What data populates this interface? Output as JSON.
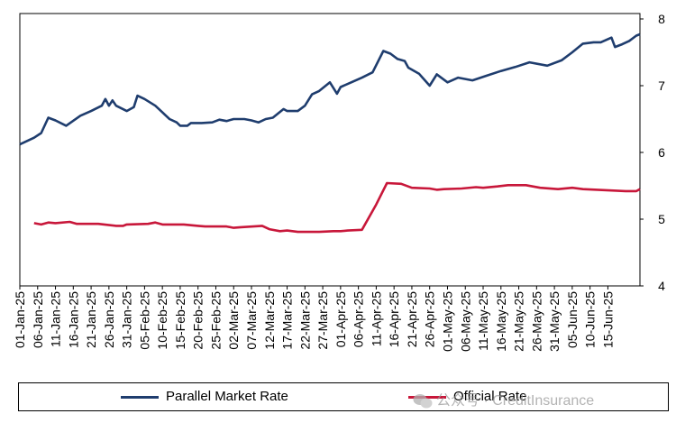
{
  "chart_data": {
    "type": "line",
    "ylim": [
      4,
      8
    ],
    "y_ticks": [
      "4",
      "5",
      "6",
      "7",
      "8"
    ],
    "x_tick_labels": [
      "01-Jan-25",
      "06-Jan-25",
      "11-Jan-25",
      "16-Jan-25",
      "21-Jan-25",
      "26-Jan-25",
      "31-Jan-25",
      "05-Feb-25",
      "10-Feb-25",
      "15-Feb-25",
      "20-Feb-25",
      "25-Feb-25",
      "02-Mar-25",
      "07-Mar-25",
      "12-Mar-25",
      "17-Mar-25",
      "22-Mar-25",
      "27-Mar-25",
      "01-Apr-25",
      "06-Apr-25",
      "11-Apr-25",
      "16-Apr-25",
      "21-Apr-25",
      "26-Apr-25",
      "01-May-25",
      "06-May-25",
      "11-May-25",
      "16-May-25",
      "21-May-25",
      "26-May-25",
      "31-May-25",
      "05-Jun-25",
      "10-Jun-25",
      "15-Jun-25"
    ],
    "x_range_days": [
      0,
      174
    ],
    "grid": false,
    "legend_position": "bottom",
    "series": [
      {
        "name": "Parallel  Market Rate",
        "color": "#1f3d6e",
        "points": [
          [
            0,
            6.12
          ],
          [
            4,
            6.22
          ],
          [
            6,
            6.29
          ],
          [
            8,
            6.52
          ],
          [
            10,
            6.48
          ],
          [
            13,
            6.4
          ],
          [
            17,
            6.55
          ],
          [
            20,
            6.62
          ],
          [
            23,
            6.7
          ],
          [
            24,
            6.8
          ],
          [
            25,
            6.7
          ],
          [
            26,
            6.78
          ],
          [
            27,
            6.7
          ],
          [
            30,
            6.62
          ],
          [
            32,
            6.68
          ],
          [
            33,
            6.85
          ],
          [
            35,
            6.8
          ],
          [
            38,
            6.7
          ],
          [
            40,
            6.6
          ],
          [
            42,
            6.5
          ],
          [
            44,
            6.45
          ],
          [
            45,
            6.4
          ],
          [
            47,
            6.4
          ],
          [
            48,
            6.44
          ],
          [
            51,
            6.44
          ],
          [
            54,
            6.45
          ],
          [
            56,
            6.49
          ],
          [
            58,
            6.47
          ],
          [
            60,
            6.5
          ],
          [
            63,
            6.5
          ],
          [
            65,
            6.48
          ],
          [
            67,
            6.45
          ],
          [
            69,
            6.5
          ],
          [
            71,
            6.52
          ],
          [
            74,
            6.65
          ],
          [
            75,
            6.62
          ],
          [
            78,
            6.62
          ],
          [
            80,
            6.7
          ],
          [
            82,
            6.87
          ],
          [
            84,
            6.92
          ],
          [
            87,
            7.05
          ],
          [
            89,
            6.88
          ],
          [
            90,
            6.98
          ],
          [
            93,
            7.05
          ],
          [
            96,
            7.12
          ],
          [
            99,
            7.2
          ],
          [
            102,
            7.52
          ],
          [
            104,
            7.48
          ],
          [
            106,
            7.4
          ],
          [
            108,
            7.37
          ],
          [
            109,
            7.27
          ],
          [
            112,
            7.18
          ],
          [
            113,
            7.12
          ],
          [
            115,
            7.0
          ],
          [
            117,
            7.17
          ],
          [
            118,
            7.13
          ],
          [
            120,
            7.05
          ],
          [
            123,
            7.12
          ],
          [
            127,
            7.08
          ],
          [
            131,
            7.15
          ],
          [
            135,
            7.22
          ],
          [
            139,
            7.28
          ],
          [
            143,
            7.35
          ],
          [
            148,
            7.3
          ],
          [
            152,
            7.38
          ],
          [
            155,
            7.5
          ],
          [
            158,
            7.63
          ],
          [
            161,
            7.65
          ],
          [
            163,
            7.65
          ],
          [
            166,
            7.72
          ],
          [
            167,
            7.58
          ],
          [
            169,
            7.62
          ],
          [
            171,
            7.67
          ],
          [
            173,
            7.75
          ],
          [
            174,
            7.77
          ]
        ]
      },
      {
        "name": "Official Rate",
        "color": "#c8173a",
        "points": [
          [
            4,
            4.94
          ],
          [
            6,
            4.92
          ],
          [
            8,
            4.95
          ],
          [
            10,
            4.94
          ],
          [
            14,
            4.96
          ],
          [
            16,
            4.93
          ],
          [
            22,
            4.93
          ],
          [
            27,
            4.9
          ],
          [
            29,
            4.9
          ],
          [
            30,
            4.92
          ],
          [
            36,
            4.93
          ],
          [
            38,
            4.95
          ],
          [
            40,
            4.92
          ],
          [
            46,
            4.92
          ],
          [
            50,
            4.9
          ],
          [
            52,
            4.89
          ],
          [
            58,
            4.89
          ],
          [
            60,
            4.87
          ],
          [
            62,
            4.88
          ],
          [
            68,
            4.9
          ],
          [
            70,
            4.85
          ],
          [
            73,
            4.82
          ],
          [
            75,
            4.83
          ],
          [
            78,
            4.81
          ],
          [
            80,
            4.81
          ],
          [
            84,
            4.81
          ],
          [
            88,
            4.82
          ],
          [
            90,
            4.82
          ],
          [
            92,
            4.83
          ],
          [
            96,
            4.84
          ],
          [
            100,
            5.22
          ],
          [
            103,
            5.54
          ],
          [
            107,
            5.53
          ],
          [
            110,
            5.47
          ],
          [
            115,
            5.46
          ],
          [
            117,
            5.44
          ],
          [
            119,
            5.45
          ],
          [
            124,
            5.46
          ],
          [
            128,
            5.48
          ],
          [
            130,
            5.47
          ],
          [
            134,
            5.49
          ],
          [
            137,
            5.51
          ],
          [
            142,
            5.51
          ],
          [
            146,
            5.47
          ],
          [
            151,
            5.45
          ],
          [
            155,
            5.47
          ],
          [
            158,
            5.45
          ],
          [
            162,
            5.44
          ],
          [
            166,
            5.43
          ],
          [
            170,
            5.42
          ],
          [
            173,
            5.42
          ],
          [
            174,
            5.45
          ]
        ]
      }
    ]
  },
  "watermark": "公众号 · CreditInsurance"
}
